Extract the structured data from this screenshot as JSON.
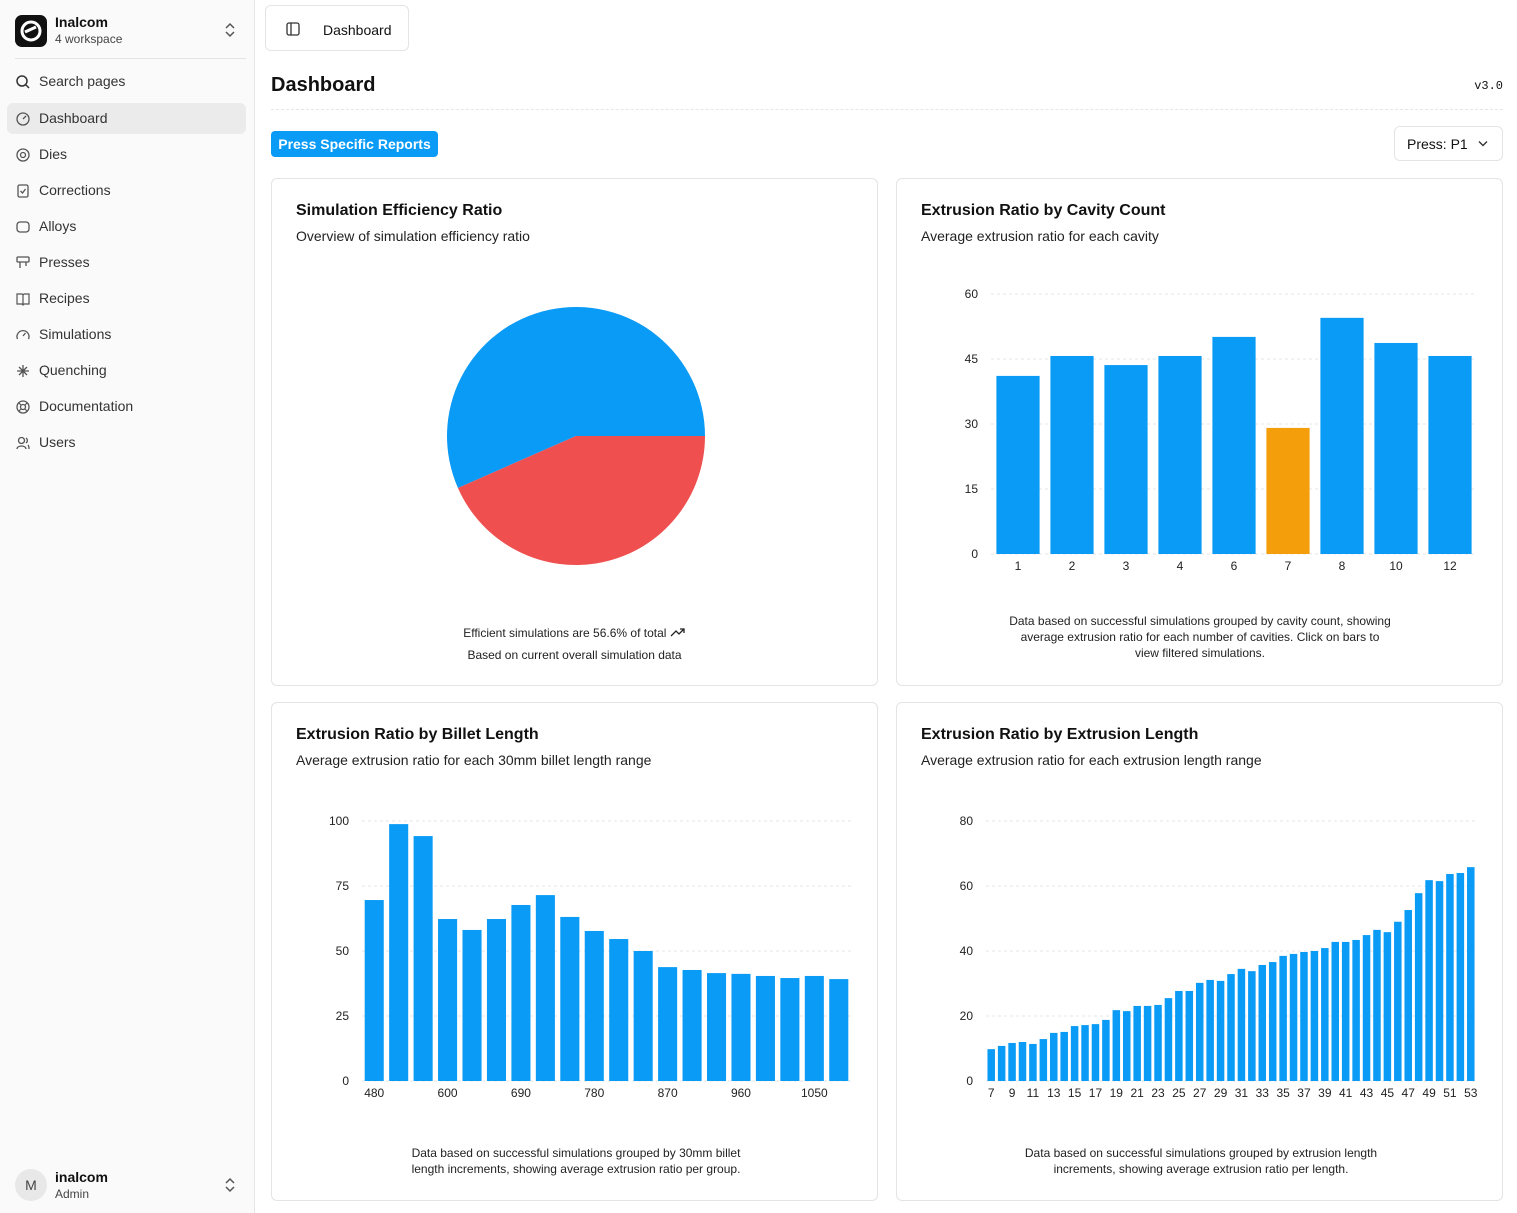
{
  "sidebar": {
    "workspace": {
      "name": "Inalcom",
      "subtitle": "4 workspace"
    },
    "search": "Search pages",
    "nav": [
      "Dashboard",
      "Dies",
      "Corrections",
      "Alloys",
      "Presses",
      "Recipes",
      "Simulations",
      "Quenching",
      "Documentation",
      "Users"
    ],
    "user": {
      "initial": "M",
      "name": "inalcom",
      "role": "Admin"
    }
  },
  "header": {
    "breadcrumb": "Dashboard",
    "title": "Dashboard",
    "version": "v3.0",
    "reports_button": "Press Specific Reports",
    "press_select": "Press: P1"
  },
  "chart_data": [
    {
      "type": "pie",
      "title": "Simulation Efficiency Ratio",
      "subtitle": "Overview of simulation efficiency ratio",
      "values": [
        56.6,
        43.4
      ],
      "colors": [
        "#0a9bf6",
        "#f04f4f"
      ],
      "footer": "Efficient simulations are 56.6% of total",
      "footnote": "Based on current overall simulation data"
    },
    {
      "type": "bar",
      "title": "Extrusion Ratio by Cavity Count",
      "subtitle": "Average extrusion ratio for each cavity",
      "categories": [
        "1",
        "2",
        "3",
        "4",
        "6",
        "7",
        "8",
        "10",
        "12"
      ],
      "values": [
        41.1,
        45.7,
        43.6,
        45.7,
        50.1,
        29.1,
        54.5,
        48.7,
        45.7
      ],
      "colors": [
        "#0a9bf6",
        "#0a9bf6",
        "#0a9bf6",
        "#0a9bf6",
        "#0a9bf6",
        "#f59e0b",
        "#0a9bf6",
        "#0a9bf6",
        "#0a9bf6"
      ],
      "ylim": [
        0,
        60
      ],
      "yticks": [
        0,
        15,
        30,
        45,
        60
      ],
      "grid": true,
      "footnote": "Data based on successful simulations grouped by cavity count, showing average extrusion ratio for each number of cavities. Click on bars to view filtered simulations."
    },
    {
      "type": "bar",
      "title": "Extrusion Ratio by Billet Length",
      "subtitle": "Average extrusion ratio for each 30mm billet length range",
      "categories": [
        "480",
        null,
        null,
        "600",
        null,
        null,
        "690",
        null,
        null,
        "780",
        null,
        null,
        "870",
        null,
        null,
        "960",
        null,
        null,
        "1050",
        null
      ],
      "values": [
        69.6,
        98.8,
        94.2,
        62.3,
        58.1,
        62.3,
        67.7,
        71.5,
        63.1,
        57.7,
        54.6,
        50,
        43.8,
        42.7,
        41.5,
        41.2,
        40.4,
        39.6,
        40.4,
        39.2
      ],
      "color": "#0a9bf6",
      "ylim": [
        0,
        100
      ],
      "yticks": [
        0,
        25,
        50,
        75,
        100
      ],
      "grid": true,
      "footnote": "Data based on successful simulations grouped by 30mm billet length increments, showing average extrusion ratio per group."
    },
    {
      "type": "bar",
      "title": "Extrusion Ratio by Extrusion Length",
      "subtitle": "Average extrusion ratio for each extrusion length range",
      "categories": [
        "7",
        null,
        "9",
        null,
        "11",
        null,
        "13",
        null,
        "15",
        null,
        "17",
        null,
        "19",
        null,
        "21",
        null,
        "23",
        null,
        "25",
        null,
        "27",
        null,
        "29",
        null,
        "31",
        null,
        "33",
        null,
        "35",
        null,
        "37",
        null,
        "39",
        null,
        "41",
        null,
        "43",
        null,
        "45",
        null,
        "47",
        null,
        "49",
        null,
        "51",
        null,
        "53"
      ],
      "values": [
        9.8,
        10.8,
        11.7,
        12,
        11.4,
        12.9,
        14.8,
        15.1,
        16.9,
        17.2,
        17.5,
        18.8,
        21.8,
        21.5,
        23.1,
        23.1,
        23.4,
        25.5,
        27.7,
        27.7,
        30.2,
        31.1,
        30.8,
        32.9,
        34.5,
        33.8,
        35.7,
        36.6,
        38.5,
        39.1,
        39.7,
        40,
        40.9,
        42.8,
        42.8,
        43.4,
        44.9,
        46.5,
        45.8,
        49,
        52.6,
        57.8,
        61.8,
        61.5,
        63.7,
        64,
        65.8
      ],
      "color": "#0a9bf6",
      "ylim": [
        0,
        80
      ],
      "yticks": [
        0,
        20,
        40,
        60,
        80
      ],
      "grid": true,
      "footnote": "Data based on successful simulations grouped by extrusion length increments, showing average extrusion ratio per length."
    }
  ]
}
